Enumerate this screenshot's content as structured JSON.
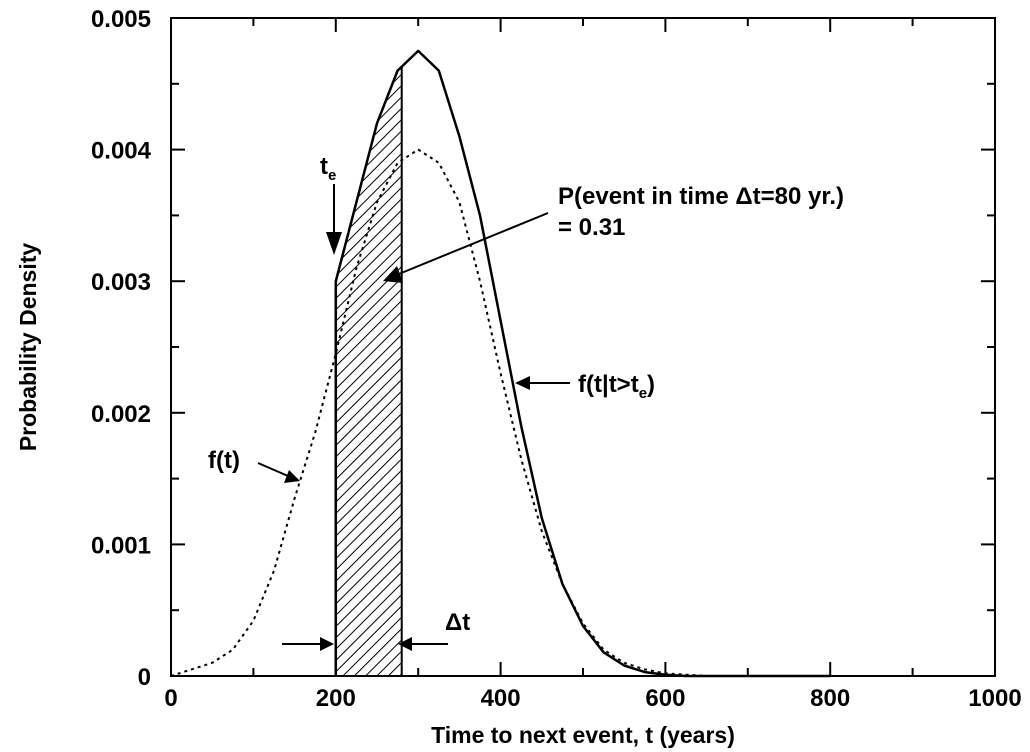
{
  "chart_data": {
    "type": "line",
    "title": "",
    "xlabel": "Time to next event, t (years)",
    "ylabel": "Probability Density",
    "xlim": [
      0,
      1000
    ],
    "ylim": [
      0,
      0.005
    ],
    "x_ticks": [
      "0",
      "200",
      "400",
      "600",
      "800",
      "1000"
    ],
    "y_ticks": [
      "0",
      "0.001",
      "0.002",
      "0.003",
      "0.004",
      "0.005"
    ],
    "grid": false,
    "series": [
      {
        "name": "f(t)",
        "style": "dotted",
        "x": [
          0,
          25,
          50,
          75,
          100,
          125,
          150,
          175,
          200,
          225,
          250,
          275,
          300,
          325,
          350,
          375,
          400,
          425,
          450,
          475,
          500,
          525,
          550,
          575,
          600,
          625,
          650,
          700,
          750,
          800
        ],
        "y": [
          0.0,
          5e-05,
          0.0001,
          0.0002,
          0.00042,
          0.0008,
          0.00135,
          0.00185,
          0.00245,
          0.0031,
          0.0036,
          0.0039,
          0.004,
          0.0039,
          0.0036,
          0.003,
          0.0023,
          0.00165,
          0.0011,
          0.0007,
          0.0004,
          0.0002,
          0.0001,
          5e-05,
          2e-05,
          1e-05,
          0.0,
          0.0,
          0.0,
          0.0
        ]
      },
      {
        "name": "f(t|t>te)",
        "style": "solid",
        "x": [
          200,
          200,
          225,
          250,
          275,
          300,
          325,
          350,
          375,
          400,
          425,
          450,
          475,
          500,
          525,
          550,
          575,
          600,
          625,
          650,
          700,
          750,
          800
        ],
        "y": [
          0.0,
          0.003,
          0.0036,
          0.0042,
          0.0046,
          0.00475,
          0.0046,
          0.0041,
          0.0035,
          0.0027,
          0.0019,
          0.0012,
          0.0007,
          0.00038,
          0.00018,
          8e-05,
          3e-05,
          1e-05,
          0.0,
          0.0,
          0.0,
          0.0,
          0.0
        ]
      }
    ],
    "shaded_region": {
      "x_start": 200,
      "x_end": 280,
      "pattern": "hatched"
    },
    "te": 200,
    "annotations": {
      "te_label": "t",
      "te_sub": "e",
      "prob_line1": "P(event in time Δt=80 yr.)",
      "prob_line2": "= 0.31",
      "ft_label": "f(t)",
      "cond_label_main": "f(t|t>t",
      "cond_label_sub": "e",
      "cond_label_end": ")",
      "dt_label": "Δt"
    }
  }
}
